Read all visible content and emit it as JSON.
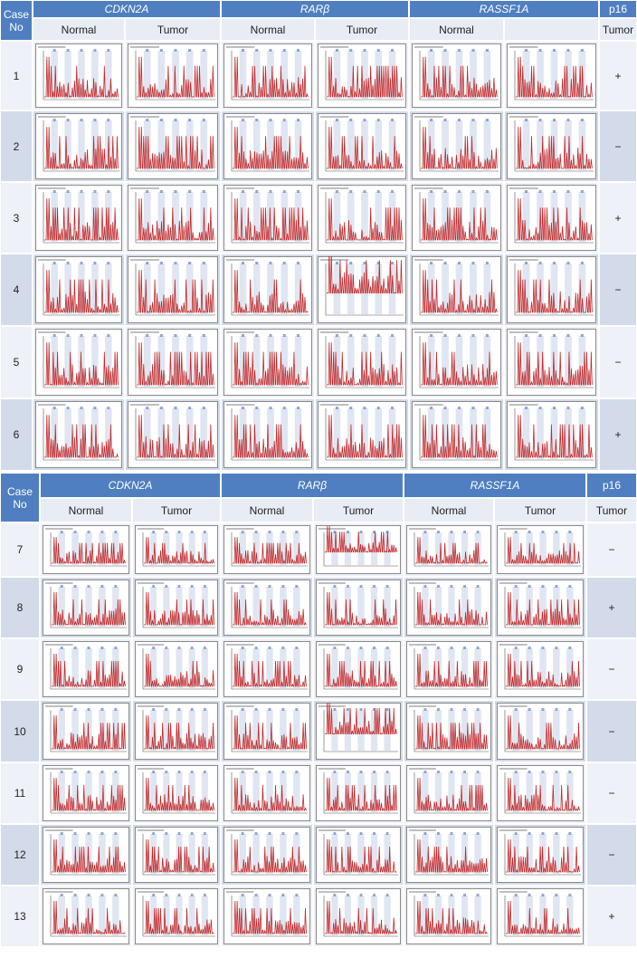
{
  "tables": [
    {
      "case_header": "Case No",
      "columns": [
        {
          "gene": "CDKN2A",
          "sub": [
            "Normal",
            "Tumor"
          ]
        },
        {
          "gene": "RARβ",
          "sub": [
            "Normal",
            "Tumor"
          ]
        },
        {
          "gene": "RASSF1A",
          "sub": [
            "Normal"
          ]
        },
        {
          "gene": "p16",
          "sub": [
            "Tumor"
          ]
        }
      ],
      "rows": [
        {
          "case": "1",
          "p16": "+"
        },
        {
          "case": "2",
          "p16": "−"
        },
        {
          "case": "3",
          "p16": "+"
        },
        {
          "case": "4",
          "p16": "−"
        },
        {
          "case": "5",
          "p16": "−"
        },
        {
          "case": "6",
          "p16": "+"
        }
      ]
    },
    {
      "case_header": "Case No",
      "columns": [
        {
          "gene": "CDKN2A",
          "sub": [
            "Normal",
            "Tumor"
          ]
        },
        {
          "gene": "RARβ",
          "sub": [
            "Normal",
            "Tumor"
          ]
        },
        {
          "gene": "RASSF1A",
          "sub": [
            "Normal",
            "Tumor"
          ]
        },
        {
          "gene": "p16",
          "sub": [
            "Tumor"
          ]
        }
      ],
      "rows": [
        {
          "case": "7",
          "p16": "−"
        },
        {
          "case": "8",
          "p16": "+"
        },
        {
          "case": "9",
          "p16": "−"
        },
        {
          "case": "10",
          "p16": "−"
        },
        {
          "case": "11",
          "p16": "−"
        },
        {
          "case": "12",
          "p16": "−"
        },
        {
          "case": "13",
          "p16": "+"
        }
      ]
    }
  ]
}
